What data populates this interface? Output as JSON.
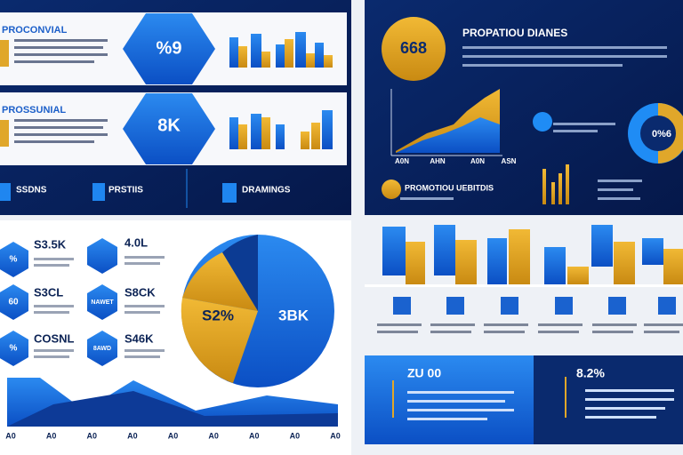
{
  "top_left": {
    "card1": {
      "title": "PROCONVIAL",
      "badge": "%9"
    },
    "card2": {
      "title": "PROSSUNIAL",
      "badge": "8K"
    },
    "legend": [
      "SSDNS",
      "PRSTIIS",
      "DRAMINGS"
    ]
  },
  "top_right": {
    "title": "PROPATIOU DIANES",
    "badge": "668",
    "axis_labels": [
      "A0N",
      "AHN",
      "A0N",
      "ASN"
    ],
    "donut_label": "0%6",
    "subtitle": "PROMOTIOU UEBITDIS"
  },
  "bottom_left": {
    "left_stats": [
      {
        "badge": "%",
        "value": "S3.5K"
      },
      {
        "badge": "60",
        "value": "S3CL"
      },
      {
        "badge": "%",
        "value": "COSNL"
      }
    ],
    "right_stats": [
      {
        "value": "4.0L"
      },
      {
        "badge": "NAWET",
        "value": "S8CK"
      },
      {
        "badge": "8AWD",
        "value": "S46K"
      }
    ],
    "pie_labels": [
      "S2%",
      "3BK"
    ],
    "axis_labels": [
      "A0",
      "A0",
      "A0",
      "A0",
      "A0",
      "A0",
      "A0",
      "A0",
      "A0"
    ]
  },
  "bottom_right": {
    "panel_values": [
      "ZU 00",
      "8.2%"
    ]
  }
}
